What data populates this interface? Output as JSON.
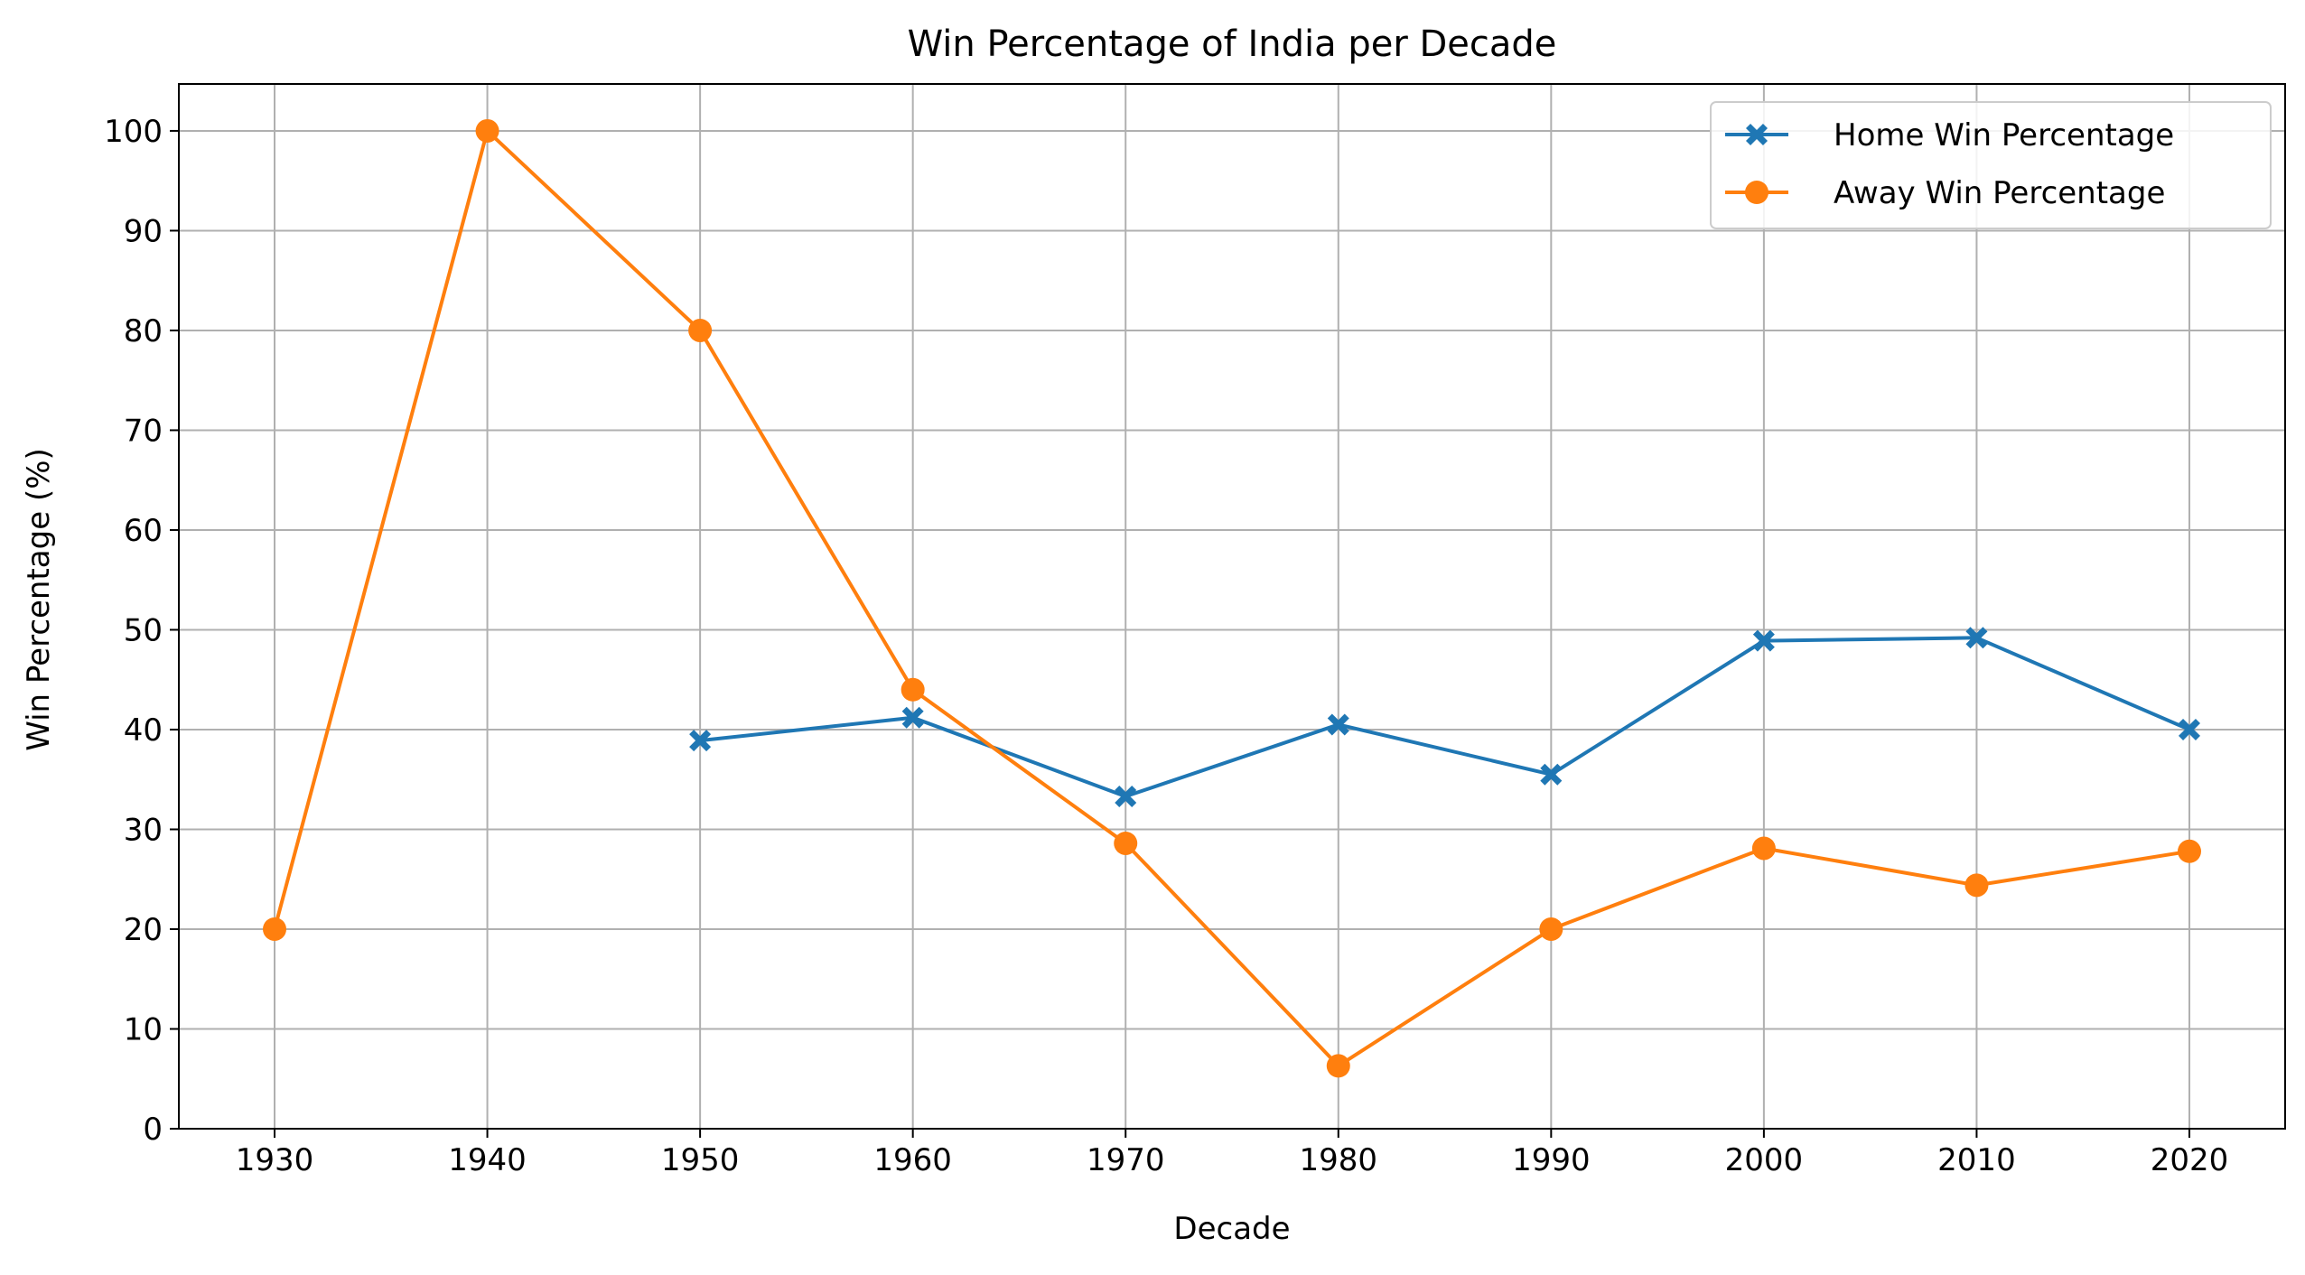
{
  "chart_data": {
    "type": "line",
    "title": "Win Percentage of India per Decade",
    "xlabel": "Decade",
    "ylabel": "Win Percentage (%)",
    "x": [
      1930,
      1940,
      1950,
      1960,
      1970,
      1980,
      1990,
      2000,
      2010,
      2020
    ],
    "x_tick_labels": [
      "1930",
      "1940",
      "1950",
      "1960",
      "1970",
      "1980",
      "1990",
      "2000",
      "2010",
      "2020"
    ],
    "y_ticks": [
      0,
      10,
      20,
      30,
      40,
      50,
      60,
      70,
      80,
      90,
      100
    ],
    "xlim": [
      1925.5,
      2024.5
    ],
    "ylim": [
      0,
      104.7
    ],
    "grid": true,
    "legend_position": "top-right",
    "series": [
      {
        "name": "Home Win Percentage",
        "color": "#1f77b4",
        "marker": "x-filled",
        "x": [
          1950,
          1960,
          1970,
          1980,
          1990,
          2000,
          2010,
          2020
        ],
        "values": [
          38.9,
          41.2,
          33.3,
          40.5,
          35.5,
          48.9,
          49.2,
          40.0
        ]
      },
      {
        "name": "Away Win Percentage",
        "color": "#ff7f0e",
        "marker": "circle",
        "x": [
          1930,
          1940,
          1950,
          1960,
          1970,
          1980,
          1990,
          2000,
          2010,
          2020
        ],
        "values": [
          20.0,
          100.0,
          80.0,
          44.0,
          28.6,
          6.3,
          20.0,
          28.1,
          24.4,
          27.8
        ]
      }
    ]
  }
}
